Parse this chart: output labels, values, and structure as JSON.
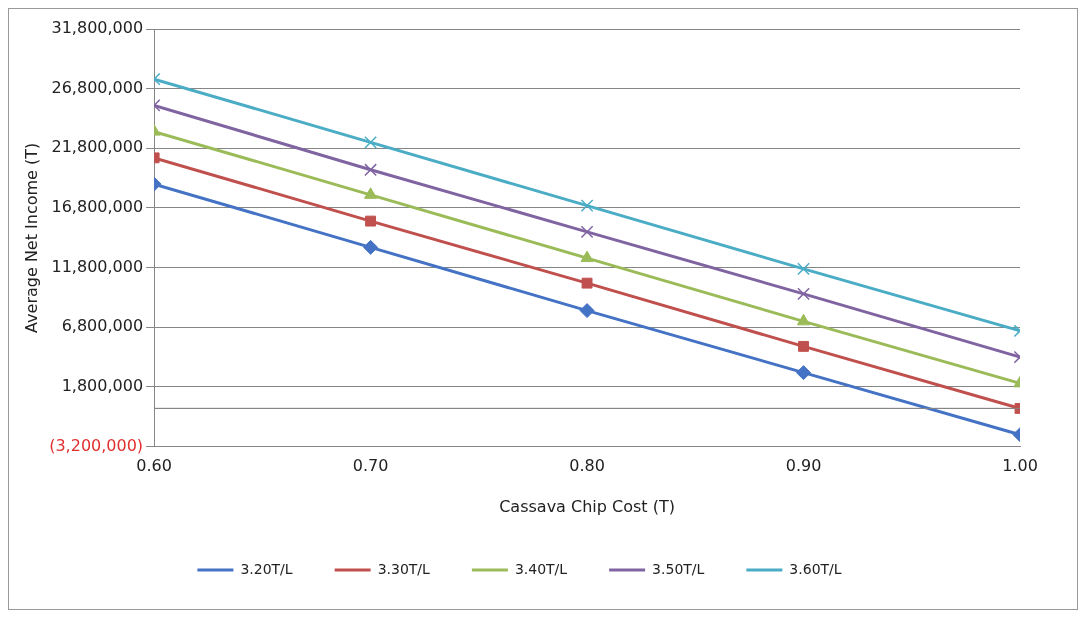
{
  "chart_data": {
    "type": "line",
    "xlabel": "Cassava Chip Cost (T)",
    "ylabel": "Average Net Income (T)",
    "x": [
      0.6,
      0.7,
      0.8,
      0.9,
      1.0
    ],
    "xlim": [
      0.6,
      1.0
    ],
    "xticks": [
      {
        "value": 0.6,
        "label": "0.60"
      },
      {
        "value": 0.7,
        "label": "0.70"
      },
      {
        "value": 0.8,
        "label": "0.80"
      },
      {
        "value": 0.9,
        "label": "0.90"
      },
      {
        "value": 1.0,
        "label": "1.00"
      }
    ],
    "ylim": [
      -3200000,
      31800000
    ],
    "yticks": [
      {
        "value": -3200000,
        "label": "(3,200,000)"
      },
      {
        "value": 1800000,
        "label": "1,800,000"
      },
      {
        "value": 6800000,
        "label": "6,800,000"
      },
      {
        "value": 11800000,
        "label": "11,800,000"
      },
      {
        "value": 16800000,
        "label": "16,800,000"
      },
      {
        "value": 21800000,
        "label": "21,800,000"
      },
      {
        "value": 26800000,
        "label": "26,800,000"
      },
      {
        "value": 31800000,
        "label": "31,800,000"
      }
    ],
    "grid": "y",
    "legend": "bottom",
    "line_style": "solid",
    "series": [
      {
        "name": "3.20T/L",
        "color": "#4472c4",
        "marker": "diamond",
        "values": [
          18800000,
          13500000,
          8200000,
          3000000,
          -2200000
        ]
      },
      {
        "name": "3.30T/L",
        "color": "#c0504d",
        "marker": "square",
        "values": [
          21000000,
          15700000,
          10500000,
          5200000,
          0
        ]
      },
      {
        "name": "3.40T/L",
        "color": "#9bbb59",
        "marker": "triangle",
        "values": [
          23200000,
          17900000,
          12600000,
          7300000,
          2100000
        ]
      },
      {
        "name": "3.50T/L",
        "color": "#8064a2",
        "marker": "cross",
        "values": [
          25400000,
          20000000,
          14800000,
          9600000,
          4300000
        ]
      },
      {
        "name": "3.60T/L",
        "color": "#4bacc6",
        "marker": "cross",
        "values": [
          27600000,
          22300000,
          17000000,
          11700000,
          6500000
        ]
      }
    ]
  }
}
